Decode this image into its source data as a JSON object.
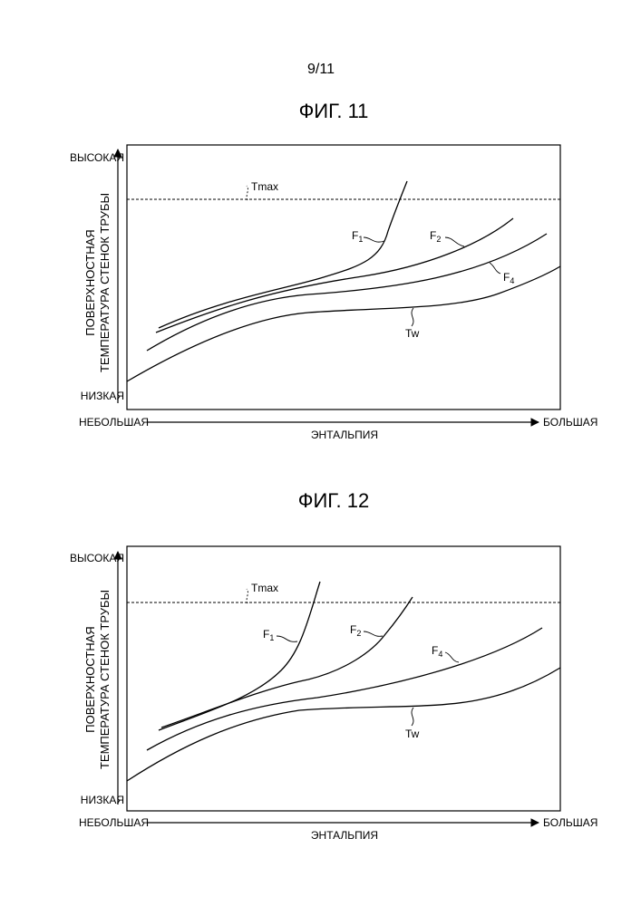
{
  "page_number": "9/11",
  "figures": [
    {
      "title": "ФИГ. 11",
      "y_high": "ВЫСОКАЯ",
      "y_low": "НИЗКАЯ",
      "y_label_line1": "ПОВЕРХНОСТНАЯ",
      "y_label_line2": "ТЕМПЕРАТУРА СТЕНОК ТРУБЫ",
      "x_low": "НЕБОЛЬШАЯ",
      "x_high": "БОЛЬШАЯ",
      "x_label": "ЭНТАЛЬПИЯ",
      "tmax_label": "Tmax",
      "curve_labels": {
        "F1": {
          "base": "F",
          "sub": "1"
        },
        "F2": {
          "base": "F",
          "sub": "2"
        },
        "F4": {
          "base": "F",
          "sub": "4"
        },
        "Tw": {
          "base": "Tw",
          "sub": ""
        }
      }
    },
    {
      "title": "ФИГ. 12",
      "y_high": "ВЫСОКАЯ",
      "y_low": "НИЗКАЯ",
      "y_label_line1": "ПОВЕРХНОСТНАЯ",
      "y_label_line2": "ТЕМПЕРАТУРА СТЕНОК ТРУБЫ",
      "x_low": "НЕБОЛЬШАЯ",
      "x_high": "БОЛЬШАЯ",
      "x_label": "ЭНТАЛЬПИЯ",
      "tmax_label": "Tmax",
      "curve_labels": {
        "F1": {
          "base": "F",
          "sub": "1"
        },
        "F2": {
          "base": "F",
          "sub": "2"
        },
        "F4": {
          "base": "F",
          "sub": "4"
        },
        "Tw": {
          "base": "Tw",
          "sub": ""
        }
      }
    }
  ]
}
